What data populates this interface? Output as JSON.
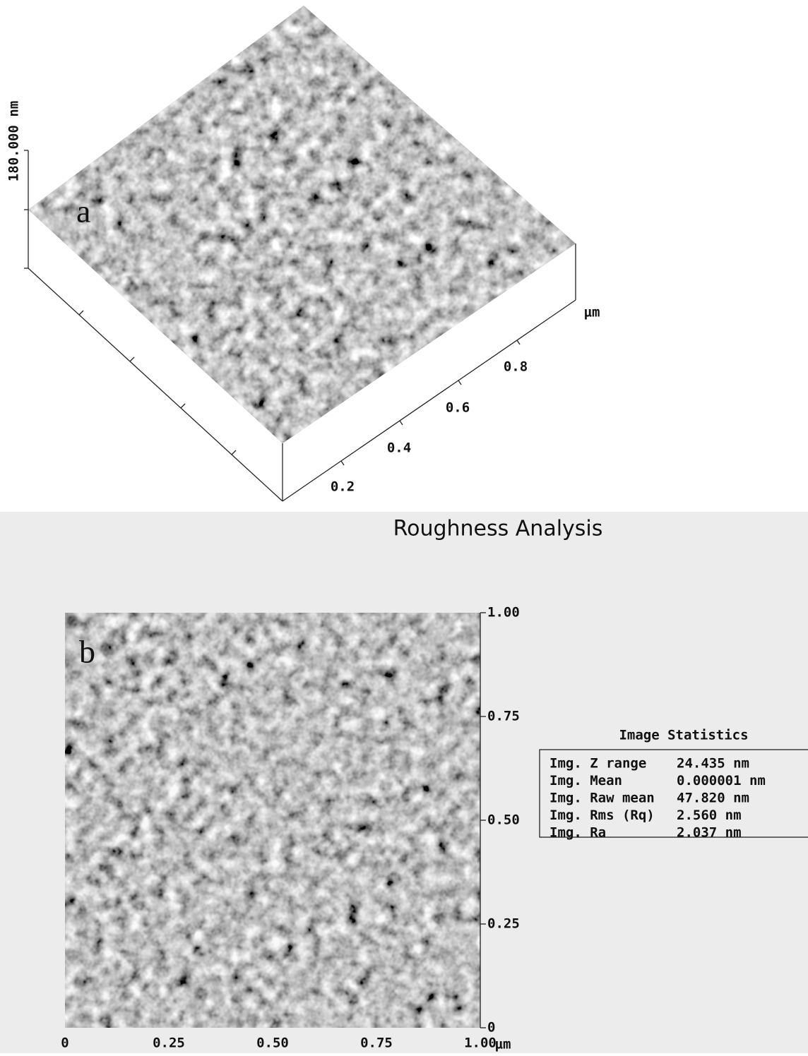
{
  "panel_a": {
    "label": "a",
    "z_scale": "180.000 nm",
    "x_ticks": [
      "0.2",
      "0.4",
      "0.6",
      "0.8"
    ],
    "x_unit": "µm"
  },
  "panel_b": {
    "title": "Roughness Analysis",
    "label": "b",
    "y_ticks": [
      "1.00",
      "0.75",
      "0.50",
      "0.25",
      "0"
    ],
    "x_ticks": [
      "0",
      "0.25",
      "0.50",
      "0.75",
      "1.00"
    ],
    "x_unit": "µm"
  },
  "statistics": {
    "title": "Image Statistics",
    "rows": [
      {
        "label": "Img. Z range",
        "value": "24.435 nm"
      },
      {
        "label": "Img. Mean",
        "value": "0.000001 nm"
      },
      {
        "label": "Img. Raw mean",
        "value": "47.820 nm"
      },
      {
        "label": "Img. Rms (Rq)",
        "value": "2.560 nm"
      },
      {
        "label": "Img. Ra",
        "value": "2.037 nm"
      }
    ]
  }
}
